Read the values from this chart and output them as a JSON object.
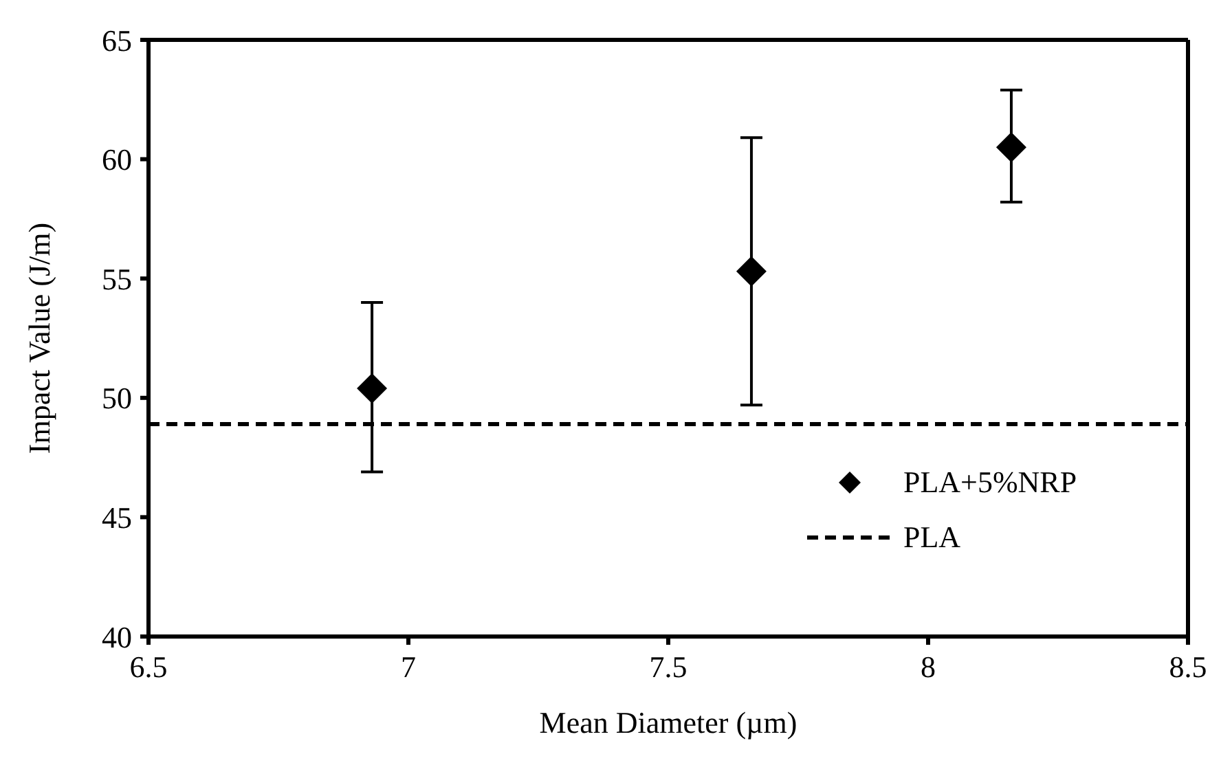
{
  "chart_data": {
    "type": "scatter",
    "xlabel": "Mean Diameter (µm)",
    "ylabel": "Impact Value (J/m)",
    "xlim": [
      6.5,
      8.5
    ],
    "xticks": [
      6.5,
      7,
      7.5,
      8,
      8.5
    ],
    "ylim": [
      40,
      65
    ],
    "yticks": [
      40,
      45,
      50,
      55,
      60,
      65
    ],
    "grid": false,
    "legend": "bottom right",
    "series": [
      {
        "name": "PLA+5%NRP",
        "color": "#000000",
        "marker": "diamond",
        "x": [
          6.93,
          7.66,
          8.16
        ],
        "values": [
          50.4,
          55.3,
          60.5
        ],
        "errors": [
          [
            46.9,
            54.0
          ],
          [
            49.7,
            60.9
          ],
          [
            58.2,
            62.9
          ]
        ]
      },
      {
        "name": "PLA",
        "type": "line",
        "color": "#000000",
        "line_style": "dashed",
        "marker": "none",
        "x": [
          6.5,
          8.5
        ],
        "values": [
          48.9,
          48.9
        ]
      }
    ]
  }
}
